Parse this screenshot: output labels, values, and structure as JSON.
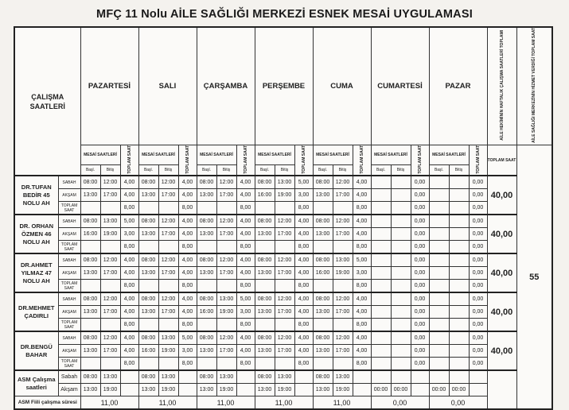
{
  "title": "MFÇ 11 Nolu AİLE SAĞLIĞI MERKEZİ ESNEK MESAİ UYGULAMASI",
  "header": {
    "calisma_saatleri": "ÇALIŞMA SAATLERİ",
    "mesai_saatleri": "MESAİ SAATLERİ",
    "toplam_saat_v": "TOPLAM SAAT",
    "basl": "Başl.",
    "bitis": "Bitiş",
    "hekim_toplam": "AİLE HEKİMİNİN HAFTALIK ÇALIŞMA SAATLERİ TOPLAMI",
    "asm_toplam": "AİLE SAĞLIĞI MERKEZİNİN HİZMET VERDİĞİ TOPLAM SAAT",
    "toplam_saat": "TOPLAM SAAT",
    "asm_total_value": "55"
  },
  "days": [
    "PAZARTESİ",
    "SALI",
    "ÇARŞAMBA",
    "PERŞEMBE",
    "CUMA",
    "CUMARTESİ",
    "PAZAR"
  ],
  "row_labels": [
    "SABAH",
    "AKŞAM",
    "TOPLAM SAAT"
  ],
  "doctors": [
    {
      "name": "DR.TUFAN BEDİR 45 NOLU AH",
      "total": "40,00",
      "rows": [
        [
          [
            "08:00",
            "12:00",
            "4,00"
          ],
          [
            "08:00",
            "12:00",
            "4,00"
          ],
          [
            "08:00",
            "12:00",
            "4,00"
          ],
          [
            "08:00",
            "13:00",
            "5,00"
          ],
          [
            "08:00",
            "12:00",
            "4,00"
          ],
          [
            "",
            "",
            "0,00"
          ],
          [
            "",
            "",
            "0,00"
          ]
        ],
        [
          [
            "13:00",
            "17:00",
            "4,00"
          ],
          [
            "13:00",
            "17:00",
            "4,00"
          ],
          [
            "13:00",
            "17:00",
            "4,00"
          ],
          [
            "16:00",
            "19:00",
            "3,00"
          ],
          [
            "13:00",
            "17:00",
            "4,00"
          ],
          [
            "",
            "",
            "0,00"
          ],
          [
            "",
            "",
            "0,00"
          ]
        ],
        [
          [
            "",
            "",
            "8,00"
          ],
          [
            "",
            "",
            "8,00"
          ],
          [
            "",
            "",
            "8,00"
          ],
          [
            "",
            "",
            "8,00"
          ],
          [
            "",
            "",
            "8,00"
          ],
          [
            "",
            "",
            "0,00"
          ],
          [
            "",
            "",
            "0,00"
          ]
        ]
      ]
    },
    {
      "name": "DR. ORHAN ÖZMEN 46 NOLU AH",
      "total": "40,00",
      "rows": [
        [
          [
            "08:00",
            "13:00",
            "5,00"
          ],
          [
            "08:00",
            "12:00",
            "4,00"
          ],
          [
            "08:00",
            "12:00",
            "4,00"
          ],
          [
            "08:00",
            "12:00",
            "4,00"
          ],
          [
            "08:00",
            "12:00",
            "4,00"
          ],
          [
            "",
            "",
            "0,00"
          ],
          [
            "",
            "",
            "0,00"
          ]
        ],
        [
          [
            "16:00",
            "19:00",
            "3,00"
          ],
          [
            "13:00",
            "17:00",
            "4,00"
          ],
          [
            "13:00",
            "17:00",
            "4,00"
          ],
          [
            "13:00",
            "17:00",
            "4,00"
          ],
          [
            "13:00",
            "17:00",
            "4,00"
          ],
          [
            "",
            "",
            "0,00"
          ],
          [
            "",
            "",
            "0,00"
          ]
        ],
        [
          [
            "",
            "",
            "8,00"
          ],
          [
            "",
            "",
            "8,00"
          ],
          [
            "",
            "",
            "8,00"
          ],
          [
            "",
            "",
            "8,00"
          ],
          [
            "",
            "",
            "8,00"
          ],
          [
            "",
            "",
            "0,00"
          ],
          [
            "",
            "",
            "0,00"
          ]
        ]
      ]
    },
    {
      "name": "DR.AHMET YILMAZ 47 NOLU AH",
      "total": "40,00",
      "rows": [
        [
          [
            "08:00",
            "12:00",
            "4,00"
          ],
          [
            "08:00",
            "12:00",
            "4,00"
          ],
          [
            "08:00",
            "12:00",
            "4,00"
          ],
          [
            "08:00",
            "12:00",
            "4,00"
          ],
          [
            "08:00",
            "13:00",
            "5,00"
          ],
          [
            "",
            "",
            "0,00"
          ],
          [
            "",
            "",
            "0,00"
          ]
        ],
        [
          [
            "13:00",
            "17:00",
            "4,00"
          ],
          [
            "13:00",
            "17:00",
            "4,00"
          ],
          [
            "13:00",
            "17:00",
            "4,00"
          ],
          [
            "13:00",
            "17:00",
            "4,00"
          ],
          [
            "16:00",
            "19:00",
            "3,00"
          ],
          [
            "",
            "",
            "0,00"
          ],
          [
            "",
            "",
            "0,00"
          ]
        ],
        [
          [
            "",
            "",
            "8,00"
          ],
          [
            "",
            "",
            "8,00"
          ],
          [
            "",
            "",
            "8,00"
          ],
          [
            "",
            "",
            "8,00"
          ],
          [
            "",
            "",
            "8,00"
          ],
          [
            "",
            "",
            "0,00"
          ],
          [
            "",
            "",
            "0,00"
          ]
        ]
      ]
    },
    {
      "name": "DR.MEHMET ÇADIRLI",
      "total": "40,00",
      "rows": [
        [
          [
            "08:00",
            "12:00",
            "4,00"
          ],
          [
            "08:00",
            "12:00",
            "4,00"
          ],
          [
            "08:00",
            "13:00",
            "5,00"
          ],
          [
            "08:00",
            "12:00",
            "4,00"
          ],
          [
            "08:00",
            "12:00",
            "4,00"
          ],
          [
            "",
            "",
            "0,00"
          ],
          [
            "",
            "",
            "0,00"
          ]
        ],
        [
          [
            "13:00",
            "17:00",
            "4,00"
          ],
          [
            "13:00",
            "17:00",
            "4,00"
          ],
          [
            "16:00",
            "19:00",
            "3,00"
          ],
          [
            "13:00",
            "17:00",
            "4,00"
          ],
          [
            "13:00",
            "17:00",
            "4,00"
          ],
          [
            "",
            "",
            "0,00"
          ],
          [
            "",
            "",
            "0,00"
          ]
        ],
        [
          [
            "",
            "",
            "8,00"
          ],
          [
            "",
            "",
            "8,00"
          ],
          [
            "",
            "",
            "8,00"
          ],
          [
            "",
            "",
            "8,00"
          ],
          [
            "",
            "",
            "8,00"
          ],
          [
            "",
            "",
            "0,00"
          ],
          [
            "",
            "",
            "0,00"
          ]
        ]
      ]
    },
    {
      "name": "DR.BENGÜ BAHAR",
      "total": "40,00",
      "rows": [
        [
          [
            "08:00",
            "12:00",
            "4,00"
          ],
          [
            "08:00",
            "13:00",
            "5,00"
          ],
          [
            "08:00",
            "12:00",
            "4,00"
          ],
          [
            "08:00",
            "12:00",
            "4,00"
          ],
          [
            "08:00",
            "12:00",
            "4,00"
          ],
          [
            "",
            "",
            "0,00"
          ],
          [
            "",
            "",
            "0,00"
          ]
        ],
        [
          [
            "13:00",
            "17:00",
            "4,00"
          ],
          [
            "16:00",
            "19:00",
            "3,00"
          ],
          [
            "13:00",
            "17:00",
            "4,00"
          ],
          [
            "13:00",
            "17:00",
            "4,00"
          ],
          [
            "13:00",
            "17:00",
            "4,00"
          ],
          [
            "",
            "",
            "0,00"
          ],
          [
            "",
            "",
            "0,00"
          ]
        ],
        [
          [
            "",
            "",
            "8,00"
          ],
          [
            "",
            "",
            "8,00"
          ],
          [
            "",
            "",
            "8,00"
          ],
          [
            "",
            "",
            "8,00"
          ],
          [
            "",
            "",
            "8,00"
          ],
          [
            "",
            "",
            "0,00"
          ],
          [
            "",
            "",
            "0,00"
          ]
        ]
      ]
    }
  ],
  "asm": {
    "label": "ASM Çalışma saatleri",
    "sabah_label": "Sabah",
    "aksam_label": "Akşam",
    "sabah": [
      [
        "08:00",
        "13:00"
      ],
      [
        "08:00",
        "13:00"
      ],
      [
        "08:00",
        "13:00"
      ],
      [
        "08:00",
        "13:00"
      ],
      [
        "08:00",
        "13:00"
      ],
      [
        "",
        ""
      ],
      [
        "",
        ""
      ]
    ],
    "aksam": [
      [
        "13:00",
        "19:00"
      ],
      [
        "13:00",
        "19:00"
      ],
      [
        "13:00",
        "19:00"
      ],
      [
        "13:00",
        "19:00"
      ],
      [
        "13:00",
        "19:00"
      ],
      [
        "00:00",
        "00:00"
      ],
      [
        "00:00",
        "00:00"
      ]
    ],
    "fiili_label": "ASM Fiili çalışma süresi",
    "fiili": [
      "11,00",
      "11,00",
      "11,00",
      "11,00",
      "11,00",
      "0,00",
      "0,00"
    ]
  }
}
